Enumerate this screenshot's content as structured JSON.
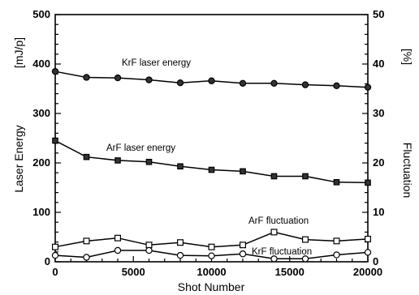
{
  "chart_data": {
    "type": "line",
    "xlabel": "Shot Number",
    "ylabel_left": "Laser Energy",
    "ylabel_left_unit": "[mJ/p]",
    "ylabel_right": "Fluctuation",
    "ylabel_right_unit": "[%]",
    "xlim": [
      0,
      20000
    ],
    "ylim_left": [
      0,
      500
    ],
    "ylim_right": [
      0,
      50
    ],
    "x_ticks": [
      "0",
      "5000",
      "10000",
      "15000",
      "20000"
    ],
    "y_left_ticks": [
      "0",
      "100",
      "200",
      "300",
      "400",
      "500"
    ],
    "y_right_ticks": [
      "0",
      "10",
      "20",
      "30",
      "40",
      "50"
    ],
    "grid": false,
    "legend": "none",
    "series": [
      {
        "name": "KrF laser energy",
        "axis": "left",
        "marker": "filled-circle",
        "x": [
          0,
          2000,
          4000,
          6000,
          8000,
          10000,
          12000,
          14000,
          16000,
          18000,
          20000
        ],
        "y": [
          385,
          373,
          372,
          368,
          362,
          366,
          361,
          361,
          358,
          356,
          353
        ]
      },
      {
        "name": "ArF laser energy",
        "axis": "left",
        "marker": "filled-square",
        "x": [
          0,
          2000,
          4000,
          6000,
          8000,
          10000,
          12000,
          14000,
          16000,
          18000,
          20000
        ],
        "y": [
          245,
          212,
          205,
          202,
          193,
          186,
          183,
          173,
          173,
          161,
          160
        ]
      },
      {
        "name": "ArF fluctuation",
        "axis": "right",
        "marker": "open-square",
        "x": [
          0,
          2000,
          4000,
          6000,
          8000,
          10000,
          12000,
          14000,
          16000,
          18000,
          20000
        ],
        "y": [
          3.0,
          4.2,
          4.8,
          3.4,
          3.9,
          3.0,
          3.4,
          6.0,
          4.5,
          4.2,
          4.6
        ]
      },
      {
        "name": "KrF fluctuation",
        "axis": "right",
        "marker": "open-circle",
        "x": [
          0,
          2000,
          4000,
          6000,
          8000,
          10000,
          12000,
          14000,
          16000,
          18000,
          20000
        ],
        "y": [
          1.3,
          0.9,
          2.3,
          2.3,
          1.3,
          1.2,
          1.6,
          0.6,
          0.6,
          1.4,
          1.9
        ]
      }
    ]
  }
}
